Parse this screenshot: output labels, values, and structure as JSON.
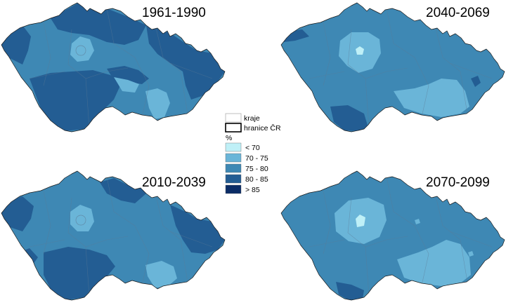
{
  "maps": [
    {
      "period": "1961-1990",
      "base_color": "#3e88b4",
      "patches": [
        {
          "class": "80 - 85",
          "color": "#235d93"
        },
        {
          "class": "80 - 85",
          "color": "#235d93"
        },
        {
          "class": "80 - 85",
          "color": "#235d93"
        },
        {
          "class": "80 - 85",
          "color": "#235d93"
        },
        {
          "class": "70 - 75",
          "color": "#6ab5d8"
        },
        {
          "class": "70 - 75",
          "color": "#6ab5d8"
        },
        {
          "class": "80 - 85",
          "color": "#235d93"
        },
        {
          "class": "70 - 75",
          "color": "#6ab5d8"
        }
      ]
    },
    {
      "period": "2040-2069",
      "base_color": "#3e88b4",
      "patches": [
        {
          "class": "70 - 75",
          "color": "#6ab5d8"
        },
        {
          "class": "< 70",
          "color": "#bff0f7"
        },
        {
          "class": "70 - 75",
          "color": "#6ab5d8"
        },
        {
          "class": "80 - 85",
          "color": "#235d93"
        },
        {
          "class": "80 - 85",
          "color": "#235d93"
        },
        {
          "class": "80 - 85",
          "color": "#235d93"
        }
      ]
    },
    {
      "period": "2010-2039",
      "base_color": "#3e88b4",
      "patches": [
        {
          "class": "80 - 85",
          "color": "#235d93"
        },
        {
          "class": "80 - 85",
          "color": "#235d93"
        },
        {
          "class": "80 - 85",
          "color": "#235d93"
        },
        {
          "class": "70 - 75",
          "color": "#6ab5d8"
        },
        {
          "class": "70 - 75",
          "color": "#6ab5d8"
        },
        {
          "class": "80 - 85",
          "color": "#235d93"
        },
        {
          "class": "80 - 85",
          "color": "#235d93"
        }
      ]
    },
    {
      "period": "2070-2099",
      "base_color": "#3e88b4",
      "patches": [
        {
          "class": "70 - 75",
          "color": "#6ab5d8"
        },
        {
          "class": "< 70",
          "color": "#bff0f7"
        },
        {
          "class": "70 - 75",
          "color": "#6ab5d8"
        },
        {
          "class": "80 - 85",
          "color": "#235d93"
        },
        {
          "class": "70 - 75",
          "color": "#6ab5d8"
        },
        {
          "class": "70 - 75",
          "color": "#6ab5d8"
        }
      ]
    }
  ],
  "legend": {
    "boundary_items": [
      {
        "label": "kraje",
        "line_color": "#b0b0b0"
      },
      {
        "label": "hranice ČR",
        "line_color": "#000000"
      }
    ],
    "unit": "%",
    "classes": [
      {
        "label": "< 70",
        "color": "#bff0f7"
      },
      {
        "label": "70 - 75",
        "color": "#6ab5d8"
      },
      {
        "label": "75 - 80",
        "color": "#3e88b4"
      },
      {
        "label": "80 - 85",
        "color": "#235d93"
      },
      {
        "label": "> 85",
        "color": "#0b2c66"
      }
    ]
  }
}
